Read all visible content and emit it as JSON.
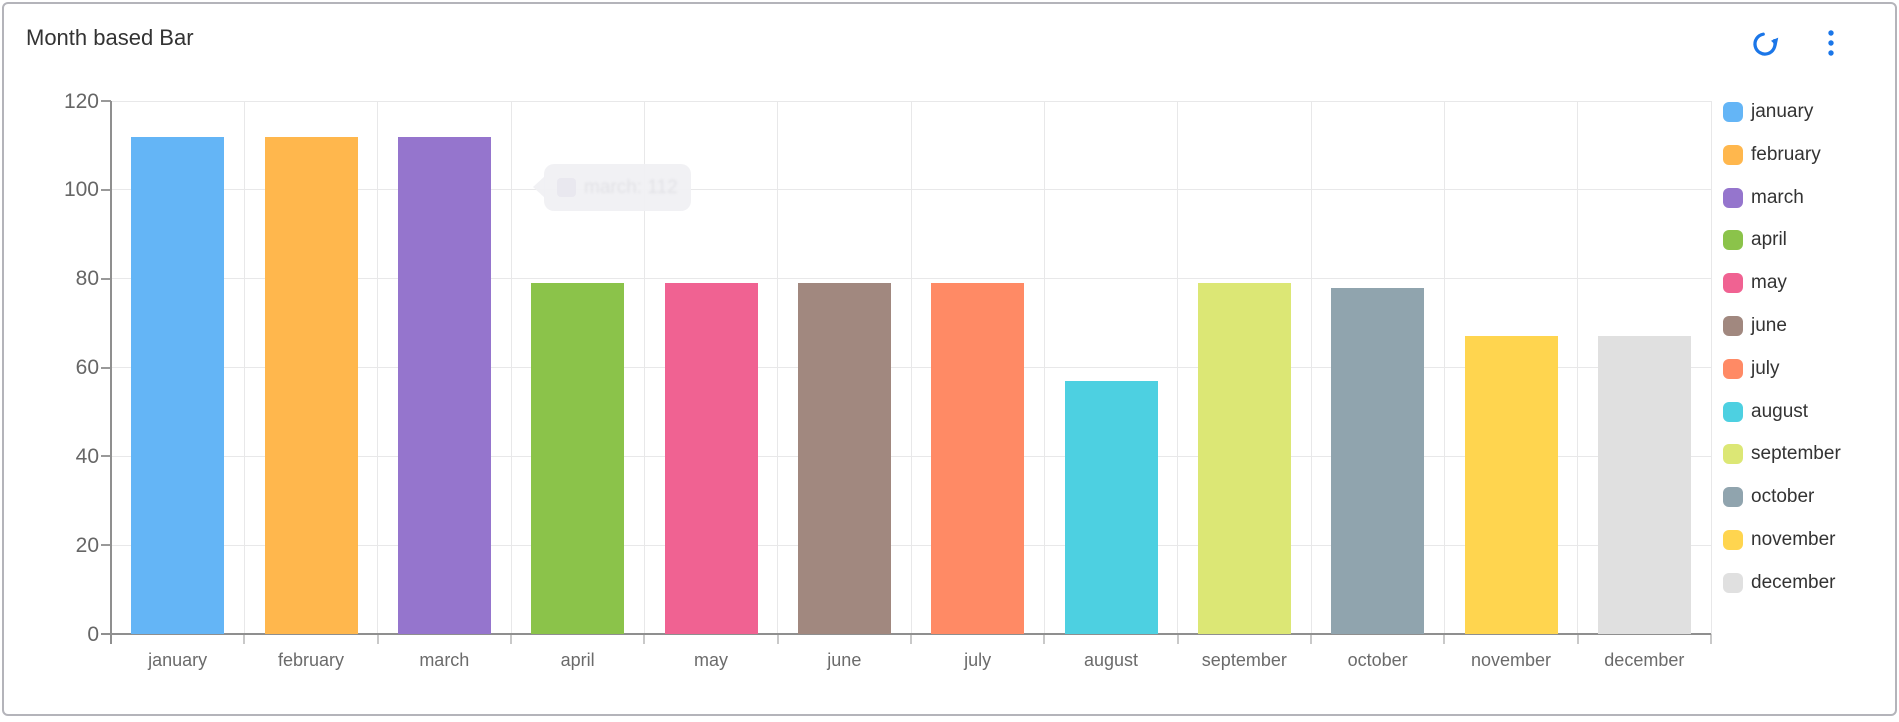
{
  "header": {
    "title": "Month based Bar",
    "accent_color": "#1b76e8",
    "icons": {
      "refresh": "refresh-icon",
      "menu": "kebab-menu-icon"
    }
  },
  "chart_data": {
    "type": "bar",
    "title": "Month based Bar",
    "categories": [
      "january",
      "february",
      "march",
      "april",
      "may",
      "june",
      "july",
      "august",
      "september",
      "october",
      "november",
      "december"
    ],
    "values": [
      112,
      112,
      112,
      79,
      79,
      79,
      79,
      57,
      79,
      78,
      67,
      67
    ],
    "colors": [
      "#64b5f6",
      "#ffb74d",
      "#9575cd",
      "#8bc34a",
      "#f06292",
      "#a1887f",
      "#ff8a65",
      "#4dd0e1",
      "#dce775",
      "#90a4ae",
      "#ffd54f",
      "#e0e0e0"
    ],
    "xlabel": "",
    "ylabel": "",
    "ylim": [
      0,
      120
    ],
    "yticks": [
      0,
      20,
      40,
      60,
      80,
      100,
      120
    ],
    "grid": true,
    "bar_width_fraction": 0.7,
    "legend_position": "right",
    "grid_color": "#e8e8e9",
    "axis_color": "#8f8f8f",
    "label_color": "#666666"
  },
  "tooltip": {
    "text": "march: 112",
    "swatch_color": "#e9e8ef"
  }
}
